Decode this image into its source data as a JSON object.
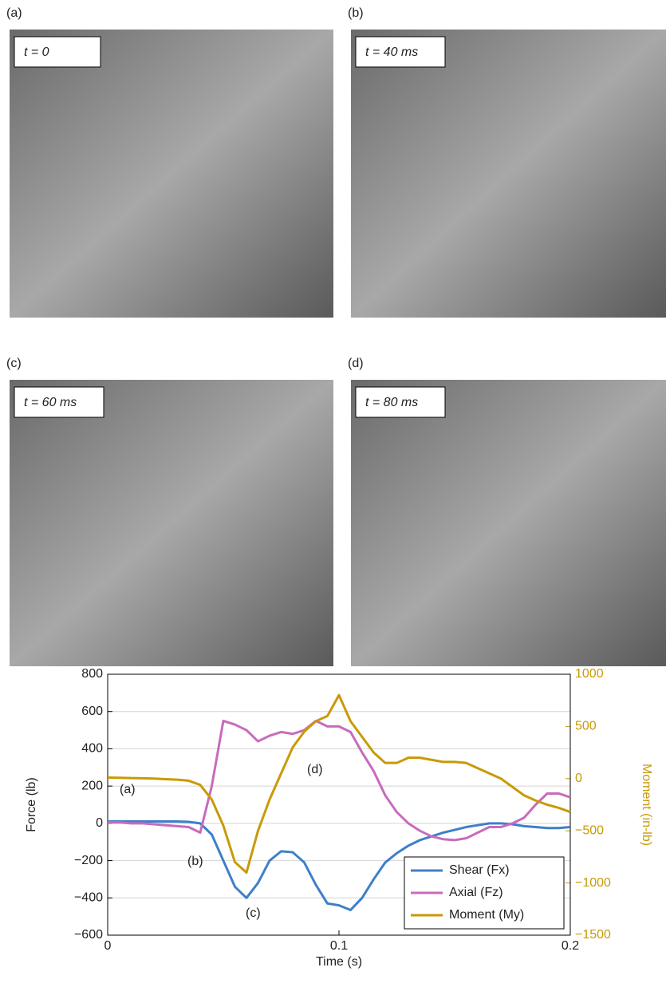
{
  "panels": [
    {
      "label": "(a)",
      "caption": "t = 0"
    },
    {
      "label": "(b)",
      "caption": "t = 40 ms"
    },
    {
      "label": "(c)",
      "caption": "t = 60 ms"
    },
    {
      "label": "(d)",
      "caption": "t = 80 ms"
    }
  ],
  "chart_data": {
    "type": "line",
    "x_label": "Time (s)",
    "y_label": "Force (lb)",
    "y2_label": "Moment (in-lb)",
    "y2_color": "#c99a06",
    "x": [
      0,
      0.005,
      0.01,
      0.015,
      0.02,
      0.025,
      0.03,
      0.035,
      0.04,
      0.045,
      0.05,
      0.055,
      0.06,
      0.065,
      0.07,
      0.075,
      0.08,
      0.085,
      0.09,
      0.095,
      0.1,
      0.105,
      0.11,
      0.115,
      0.12,
      0.125,
      0.13,
      0.135,
      0.14,
      0.145,
      0.15,
      0.155,
      0.16,
      0.165,
      0.17,
      0.175,
      0.18,
      0.185,
      0.19,
      0.195,
      0.2
    ],
    "series": [
      {
        "name": "Shear (Fx)",
        "color": "#3f7fc9",
        "values": [
          10,
          10,
          10,
          10,
          10,
          10,
          10,
          8,
          0,
          -60,
          -200,
          -340,
          -400,
          -320,
          -200,
          -150,
          -155,
          -210,
          -330,
          -430,
          -440,
          -465,
          -400,
          -300,
          -210,
          -160,
          -120,
          -90,
          -70,
          -50,
          -35,
          -20,
          -10,
          0,
          0,
          -5,
          -15,
          -20,
          -25,
          -25,
          -20
        ]
      },
      {
        "name": "Axial (Fz)",
        "color": "#c86bbd",
        "values": [
          5,
          5,
          0,
          0,
          -5,
          -10,
          -15,
          -20,
          -50,
          200,
          550,
          530,
          500,
          440,
          470,
          490,
          480,
          500,
          550,
          520,
          520,
          490,
          380,
          280,
          150,
          60,
          0,
          -40,
          -70,
          -85,
          -90,
          -80,
          -50,
          -20,
          -20,
          0,
          30,
          100,
          160,
          160,
          140
        ]
      },
      {
        "name": "Moment (My)",
        "color": "#c99a06",
        "axis": "y2",
        "values": [
          10,
          8,
          5,
          3,
          0,
          -5,
          -10,
          -20,
          -60,
          -200,
          -450,
          -800,
          -900,
          -500,
          -200,
          50,
          300,
          450,
          550,
          600,
          800,
          550,
          400,
          250,
          150,
          150,
          200,
          200,
          180,
          160,
          160,
          150,
          100,
          50,
          0,
          -80,
          -160,
          -210,
          -250,
          -280,
          -320
        ]
      }
    ],
    "annotations": [
      "(a)",
      "(b)",
      "(c)",
      "(d)"
    ],
    "xlim": [
      0,
      0.2
    ],
    "xticks": [
      0,
      0.1,
      0.2
    ],
    "ylim": [
      -600,
      800
    ],
    "yticks": [
      {
        "value": -600,
        "label": "−600"
      },
      {
        "value": -400,
        "label": "−400"
      },
      {
        "value": -200,
        "label": "−200"
      },
      0,
      200,
      400,
      600,
      800
    ],
    "y2lim": [
      -1500,
      1000
    ],
    "y2ticks": [
      {
        "value": -1500,
        "label": "−1500"
      },
      {
        "value": -1000,
        "label": "−1000"
      },
      {
        "value": -500,
        "label": "−500"
      },
      0,
      500,
      1000
    ],
    "grid": true,
    "legend": "lower right"
  }
}
